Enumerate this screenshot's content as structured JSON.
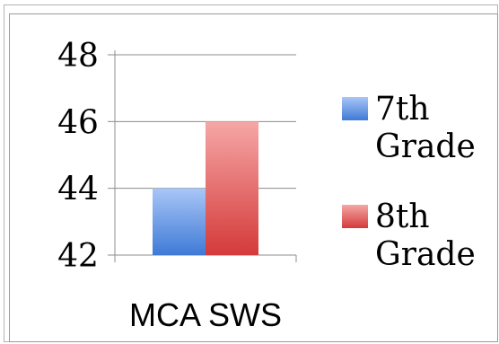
{
  "chart_data": {
    "type": "bar",
    "categories": [
      "MCA SWS"
    ],
    "series": [
      {
        "name": "7th Grade",
        "values": [
          44
        ],
        "color": "#5b8ee0"
      },
      {
        "name": "8th Grade",
        "values": [
          46
        ],
        "color": "#e65a5a"
      }
    ],
    "ylim": [
      42,
      48
    ],
    "yticks": [
      42,
      44,
      46,
      48
    ],
    "grid": true,
    "legend_position": "right",
    "legend": [
      {
        "line1": "7th",
        "line2": "Grade"
      },
      {
        "line1": "8th",
        "line2": "Grade"
      }
    ]
  }
}
